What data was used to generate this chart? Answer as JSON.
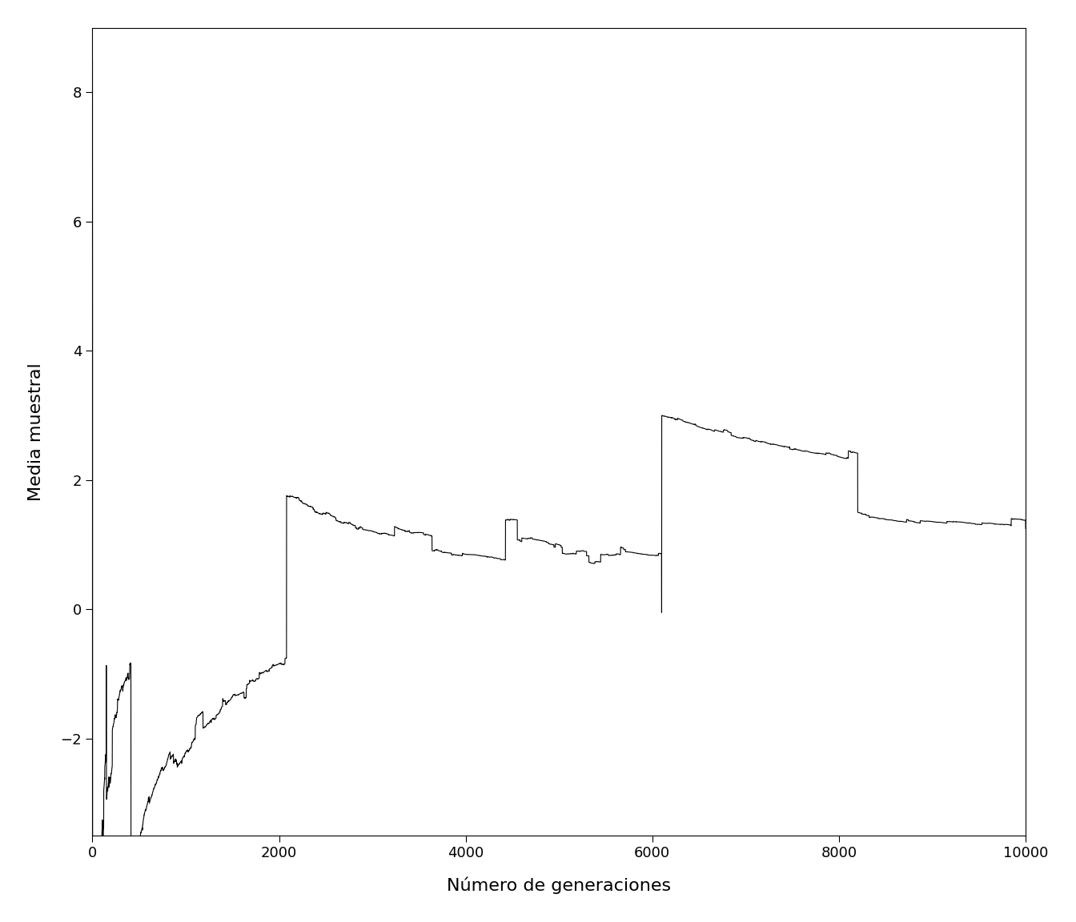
{
  "xlabel": "Número de generaciones",
  "ylabel": "Media muestral",
  "xlim": [
    0,
    10000
  ],
  "ylim": [
    -3.5,
    9.0
  ],
  "xticks": [
    0,
    2000,
    4000,
    6000,
    8000,
    10000
  ],
  "yticks": [
    -2,
    0,
    2,
    4,
    6,
    8
  ],
  "line_color": "#000000",
  "line_width": 0.8,
  "background_color": "#ffffff",
  "n_points": 10000
}
